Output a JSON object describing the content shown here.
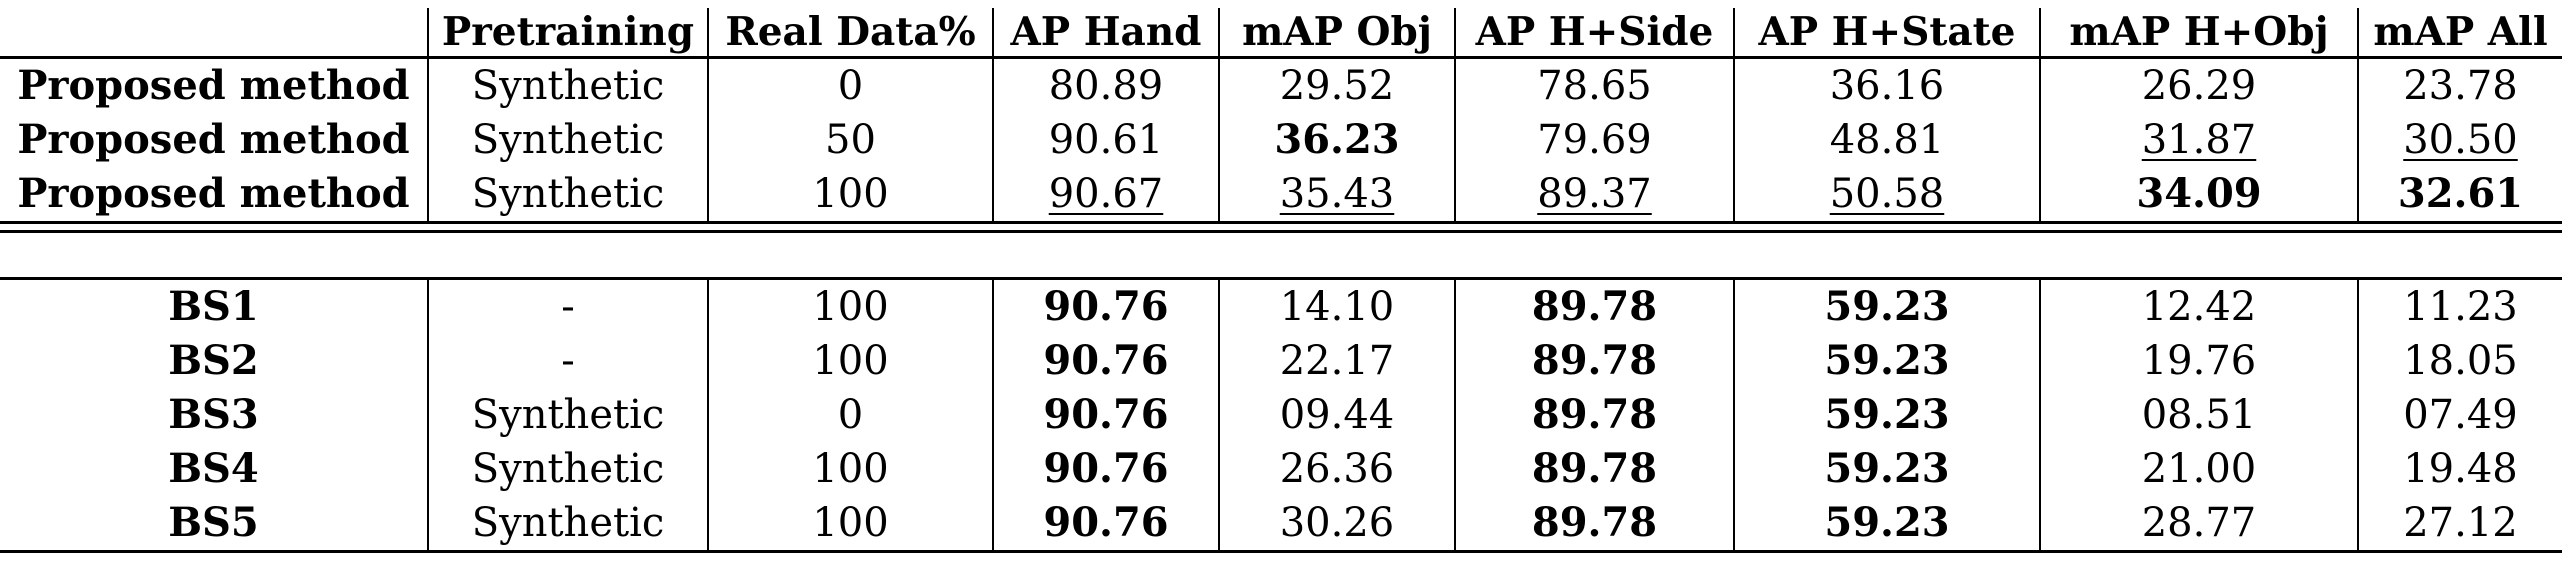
{
  "columns": [
    "Pretraining",
    "Real Data%",
    "AP Hand",
    "mAP Obj",
    "AP H+Side",
    "AP H+State",
    "mAP H+Obj",
    "mAP All"
  ],
  "group1": [
    {
      "method": "Proposed method",
      "pretraining": "Synthetic",
      "real": "0",
      "ap_hand": "80.89",
      "map_obj": "29.52",
      "ap_hside": "78.65",
      "ap_hstate": "36.16",
      "map_hobj": "26.29",
      "map_all": "23.78"
    },
    {
      "method": "Proposed method",
      "pretraining": "Synthetic",
      "real": "50",
      "ap_hand": "90.61",
      "map_obj": "36.23",
      "ap_hside": "79.69",
      "ap_hstate": "48.81",
      "map_hobj": "31.87",
      "map_all": "30.50"
    },
    {
      "method": "Proposed method",
      "pretraining": "Synthetic",
      "real": "100",
      "ap_hand": "90.67",
      "map_obj": "35.43",
      "ap_hside": "89.37",
      "ap_hstate": "50.58",
      "map_hobj": "34.09",
      "map_all": "32.61"
    }
  ],
  "group2": [
    {
      "method": "BS1",
      "pretraining": "-",
      "real": "100",
      "ap_hand": "90.76",
      "map_obj": "14.10",
      "ap_hside": "89.78",
      "ap_hstate": "59.23",
      "map_hobj": "12.42",
      "map_all": "11.23"
    },
    {
      "method": "BS2",
      "pretraining": "-",
      "real": "100",
      "ap_hand": "90.76",
      "map_obj": "22.17",
      "ap_hside": "89.78",
      "ap_hstate": "59.23",
      "map_hobj": "19.76",
      "map_all": "18.05"
    },
    {
      "method": "BS3",
      "pretraining": "Synthetic",
      "real": "0",
      "ap_hand": "90.76",
      "map_obj": "09.44",
      "ap_hside": "89.78",
      "ap_hstate": "59.23",
      "map_hobj": "08.51",
      "map_all": "07.49"
    },
    {
      "method": "BS4",
      "pretraining": "Synthetic",
      "real": "100",
      "ap_hand": "90.76",
      "map_obj": "26.36",
      "ap_hside": "89.78",
      "ap_hstate": "59.23",
      "map_hobj": "21.00",
      "map_all": "19.48"
    },
    {
      "method": "BS5",
      "pretraining": "Synthetic",
      "real": "100",
      "ap_hand": "90.76",
      "map_obj": "30.26",
      "ap_hside": "89.78",
      "ap_hstate": "59.23",
      "map_hobj": "28.77",
      "map_all": "27.12"
    }
  ]
}
